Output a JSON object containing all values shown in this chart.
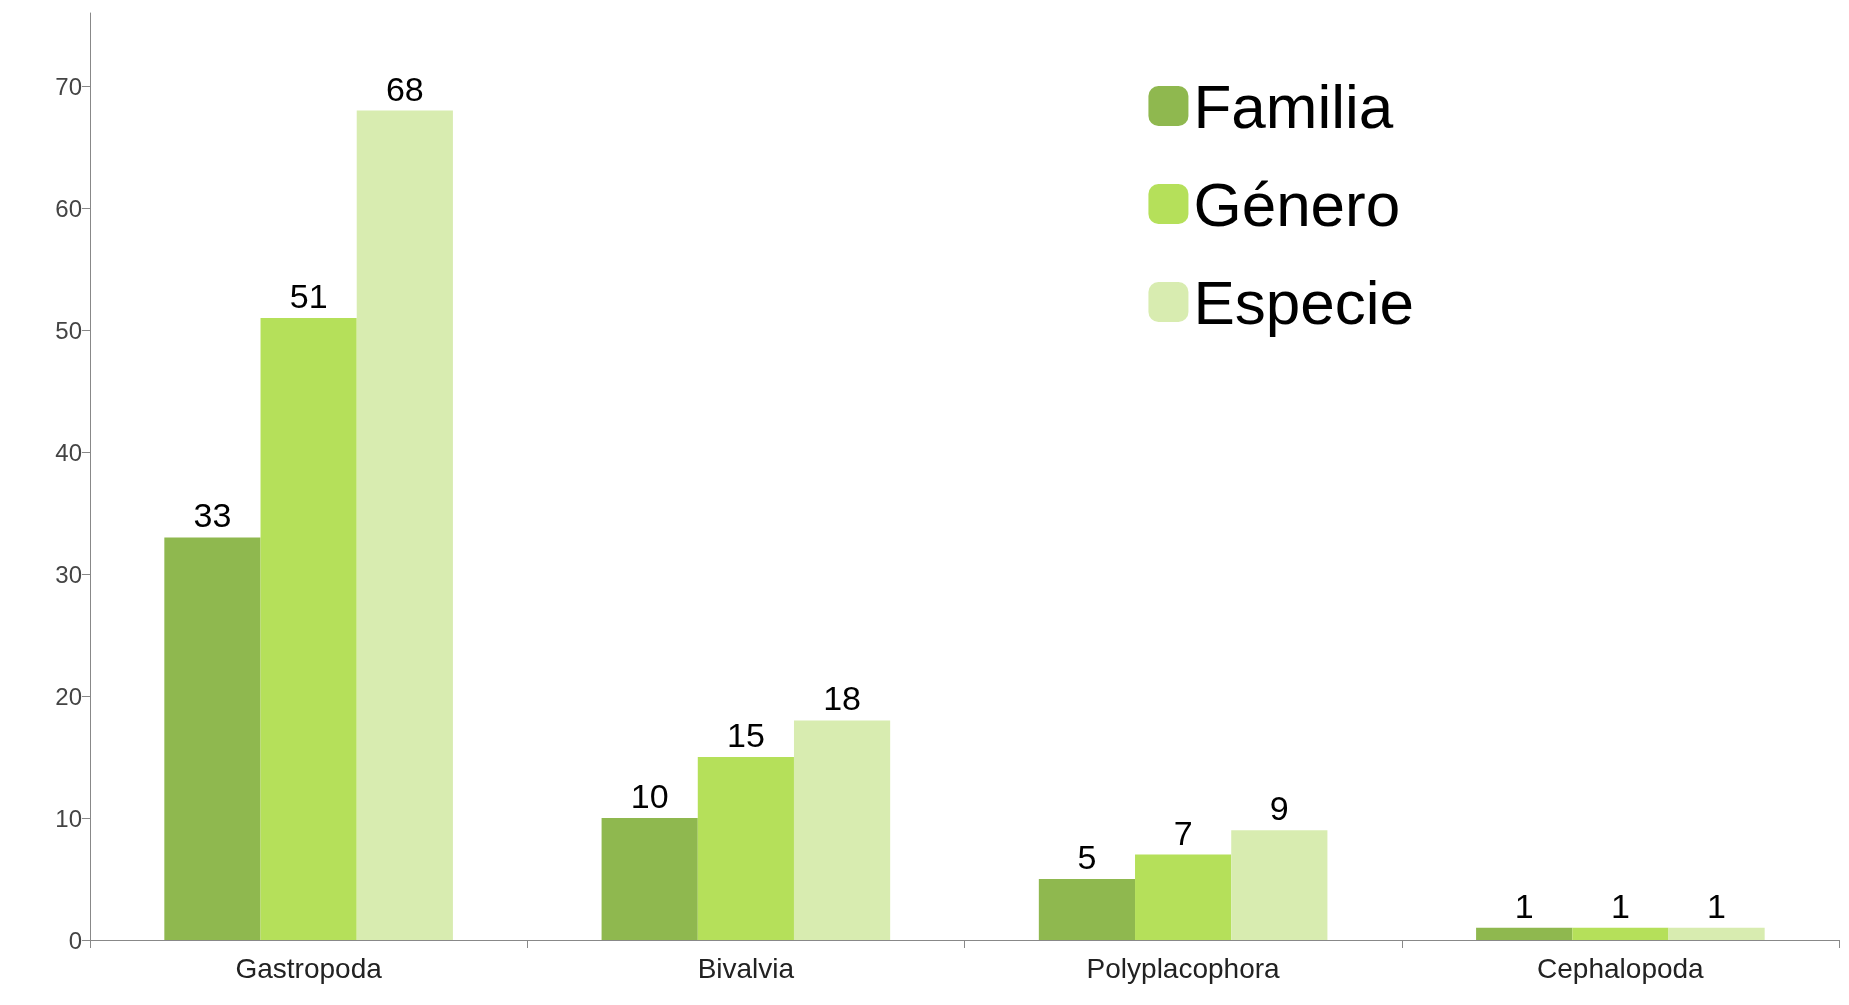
{
  "chart_data": {
    "type": "bar",
    "categories": [
      "Gastropoda",
      "Bivalvia",
      "Polyplacophora",
      "Cephalopoda"
    ],
    "series": [
      {
        "name": "Familia",
        "color": "#8fb84f",
        "values": [
          33,
          10,
          5,
          1
        ]
      },
      {
        "name": "Género",
        "color": "#b5e05a",
        "values": [
          51,
          15,
          7,
          1
        ]
      },
      {
        "name": "Especie",
        "color": "#d8ecb0",
        "values": [
          68,
          18,
          9,
          1
        ]
      }
    ],
    "ylim": [
      0,
      76
    ],
    "yticks": [
      0,
      10,
      20,
      30,
      40,
      50,
      60,
      70
    ],
    "data_labels": true,
    "grid": false,
    "legend": "top right"
  }
}
